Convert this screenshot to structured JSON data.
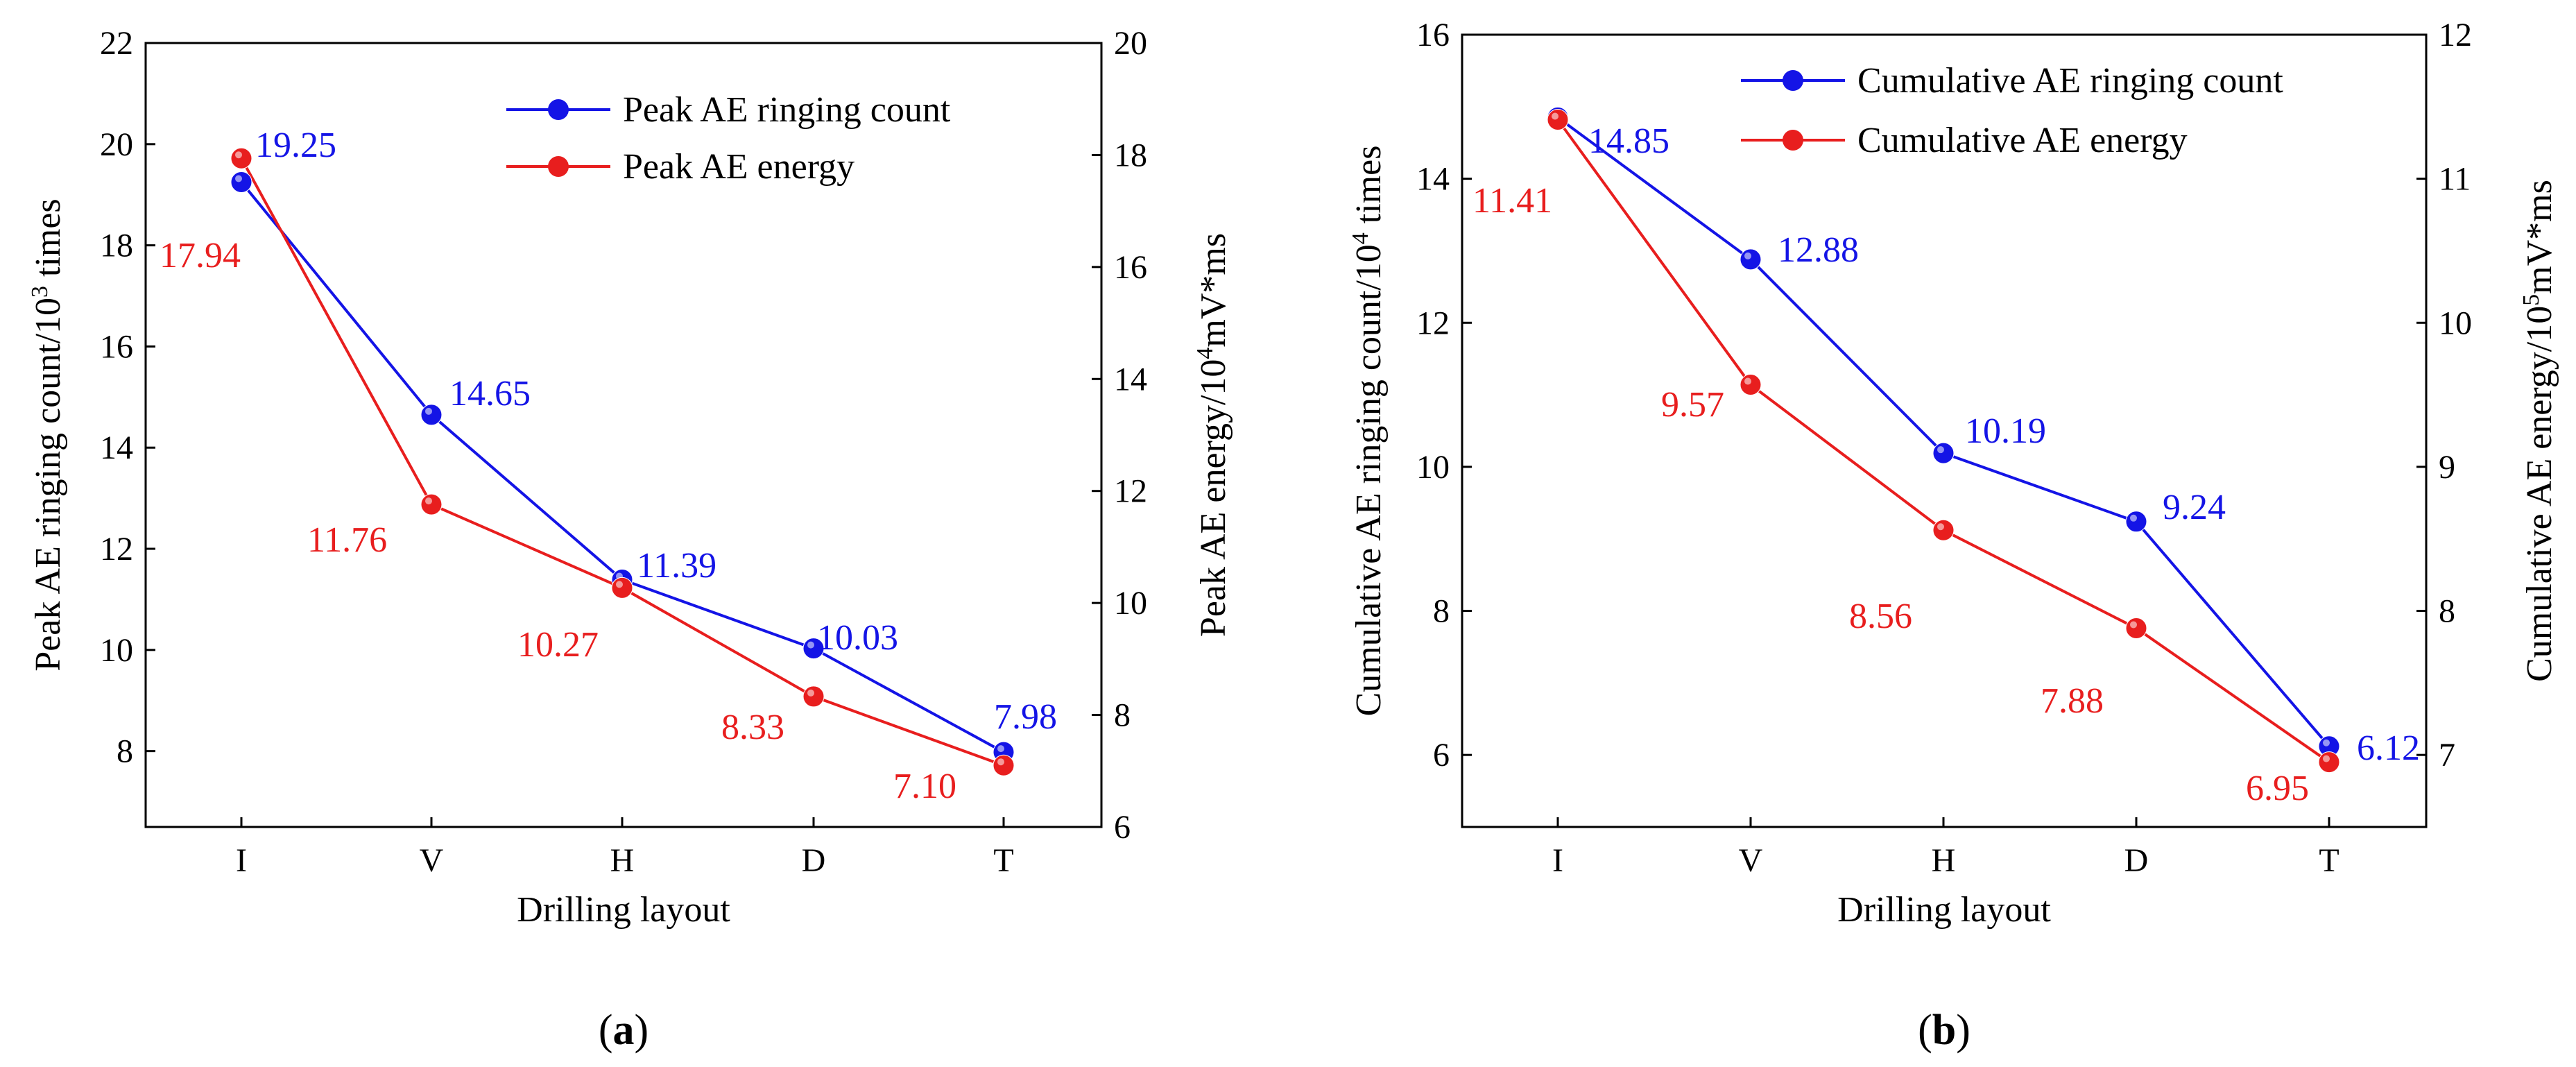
{
  "colors": {
    "series1": "#1414e6",
    "series2": "#e81e1e",
    "axis": "#000000"
  },
  "chart_data": [
    {
      "type": "line",
      "panel_label": "(a)",
      "panel_label_parts": {
        "open": "(",
        "letter": "a",
        "close": ")"
      },
      "categories": [
        "I",
        "V",
        "H",
        "D",
        "T"
      ],
      "xlabel": "Drilling layout",
      "ylabel_left": "Peak AE ringing count/10",
      "ylabel_left_sup": "3",
      "ylabel_left_suffix": " times",
      "ylabel_right": "Peak AE energy/10",
      "ylabel_right_sup": "4",
      "ylabel_right_suffix": "mV*ms",
      "ylim_left": [
        6.5,
        22
      ],
      "yticks_left": [
        8,
        10,
        12,
        14,
        16,
        18,
        20,
        22
      ],
      "ylim_right": [
        6,
        20
      ],
      "yticks_right": [
        6,
        8,
        10,
        12,
        14,
        16,
        18,
        20
      ],
      "legend_position": "top-right",
      "series": [
        {
          "name": "Peak AE ringing count",
          "axis": "left",
          "values": [
            19.25,
            14.65,
            11.39,
            10.03,
            7.98
          ],
          "labels": [
            "19.25",
            "14.65",
            "11.39",
            "10.03",
            "7.98"
          ]
        },
        {
          "name": "Peak AE energy",
          "axis": "right",
          "values": [
            17.94,
            11.76,
            10.27,
            8.33,
            7.1
          ],
          "labels": [
            "17.94",
            "11.76",
            "10.27",
            "8.33",
            "7.10"
          ]
        }
      ]
    },
    {
      "type": "line",
      "panel_label": "(b)",
      "panel_label_parts": {
        "open": "(",
        "letter": "b",
        "close": ")"
      },
      "categories": [
        "I",
        "V",
        "H",
        "D",
        "T"
      ],
      "xlabel": "Drilling layout",
      "ylabel_left": "Cumulative AE ringing count/10",
      "ylabel_left_sup": "4",
      "ylabel_left_suffix": " times",
      "ylabel_right": "Cumulative AE energy/10",
      "ylabel_right_sup": "5",
      "ylabel_right_suffix": "mV*ms",
      "ylim_left": [
        5,
        16
      ],
      "yticks_left": [
        6,
        8,
        10,
        12,
        14,
        16
      ],
      "ylim_right": [
        6.5,
        12
      ],
      "yticks_right": [
        7,
        8,
        9,
        10,
        11,
        12
      ],
      "legend_position": "top-right",
      "series": [
        {
          "name": "Cumulative AE ringing count",
          "axis": "left",
          "values": [
            14.85,
            12.88,
            10.19,
            9.24,
            6.12
          ],
          "labels": [
            "14.85",
            "12.88",
            "10.19",
            "9.24",
            "6.12"
          ]
        },
        {
          "name": "Cumulative AE energy",
          "axis": "right",
          "values": [
            11.41,
            9.57,
            8.56,
            7.88,
            6.95
          ],
          "labels": [
            "11.41",
            "9.57",
            "8.56",
            "7.88",
            "6.95"
          ]
        }
      ]
    }
  ]
}
